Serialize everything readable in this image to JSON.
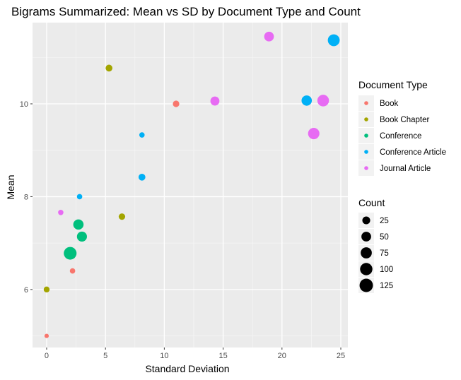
{
  "chart_data": {
    "type": "scatter",
    "title": "Bigrams Summarized: Mean vs SD by Document Type and Count",
    "xlabel": "Standard Deviation",
    "ylabel": "Mean",
    "xlim": [
      -1.2,
      25.6
    ],
    "ylim": [
      4.75,
      11.75
    ],
    "xticks": [
      0,
      5,
      10,
      15,
      20,
      25
    ],
    "yticks": [
      6,
      8,
      10
    ],
    "grid": true,
    "legend_placement": "right",
    "colors": {
      "Book": "#F8766D",
      "Book Chapter": "#A3A500",
      "Conference": "#00BF7D",
      "Conference Article": "#00B0F6",
      "Journal Article": "#E76BF3"
    },
    "series": [
      {
        "name": "Book",
        "points": [
          {
            "x": 0.0,
            "y": 5.0,
            "count": 1
          },
          {
            "x": 2.2,
            "y": 6.4,
            "count": 5
          },
          {
            "x": 11.0,
            "y": 10.0,
            "count": 12
          }
        ]
      },
      {
        "name": "Book Chapter",
        "points": [
          {
            "x": 0.0,
            "y": 6.0,
            "count": 8
          },
          {
            "x": 5.3,
            "y": 10.77,
            "count": 15
          },
          {
            "x": 6.4,
            "y": 7.57,
            "count": 12
          }
        ]
      },
      {
        "name": "Conference",
        "points": [
          {
            "x": 2.0,
            "y": 6.78,
            "count": 110
          },
          {
            "x": 2.7,
            "y": 7.4,
            "count": 60
          },
          {
            "x": 3.0,
            "y": 7.14,
            "count": 55
          }
        ]
      },
      {
        "name": "Conference Article",
        "points": [
          {
            "x": 2.8,
            "y": 8.0,
            "count": 5
          },
          {
            "x": 8.1,
            "y": 9.33,
            "count": 5
          },
          {
            "x": 8.1,
            "y": 8.42,
            "count": 15
          },
          {
            "x": 22.1,
            "y": 10.07,
            "count": 60
          },
          {
            "x": 24.4,
            "y": 11.37,
            "count": 90
          }
        ]
      },
      {
        "name": "Journal Article",
        "points": [
          {
            "x": 1.2,
            "y": 7.66,
            "count": 5
          },
          {
            "x": 14.3,
            "y": 10.06,
            "count": 40
          },
          {
            "x": 18.9,
            "y": 11.45,
            "count": 50
          },
          {
            "x": 22.7,
            "y": 9.36,
            "count": 80
          },
          {
            "x": 23.5,
            "y": 10.07,
            "count": 85
          }
        ]
      }
    ],
    "legend_color": {
      "title": "Document Type",
      "items": [
        "Book",
        "Book Chapter",
        "Conference",
        "Conference Article",
        "Journal Article"
      ]
    },
    "legend_size": {
      "title": "Count",
      "items": [
        {
          "label": "25",
          "count": 25
        },
        {
          "label": "50",
          "count": 50
        },
        {
          "label": "75",
          "count": 75
        },
        {
          "label": "100",
          "count": 100
        },
        {
          "label": "125",
          "count": 125
        }
      ]
    }
  }
}
